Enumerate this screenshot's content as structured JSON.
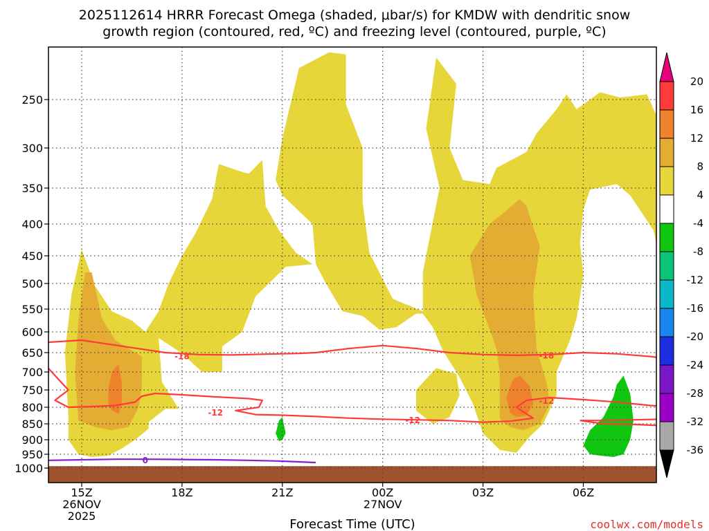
{
  "title_line1": "2025112614 HRRR Forecast Omega (shaded, μbar/s) for KMDW with dendritic snow",
  "title_line2": "growth region (contoured, red, ºC) and freezing level (contoured, purple, ºC)",
  "xlabel": "Forecast Time (UTC)",
  "credit": "coolwx.com/models",
  "chart_data": {
    "type": "area",
    "title": "2025112614 HRRR Forecast Omega (shaded, μbar/s) for KMDW with dendritic snow growth region (contoured, red, ºC) and freezing level (contoured, purple, ºC)",
    "xlabel": "Forecast Time (UTC)",
    "ylabel": "",
    "xlim_hours": [
      14,
      32.9
    ],
    "ylim_hpa": [
      200,
      1030
    ],
    "y_ticks": [
      250,
      300,
      350,
      400,
      450,
      500,
      550,
      600,
      650,
      700,
      750,
      800,
      850,
      900,
      950,
      1000
    ],
    "x_ticks": [
      {
        "hour": 15,
        "lines": [
          "15Z",
          "26NOV",
          "2025"
        ]
      },
      {
        "hour": 18,
        "lines": [
          "18Z"
        ]
      },
      {
        "hour": 21,
        "lines": [
          "21Z"
        ]
      },
      {
        "hour": 24,
        "lines": [
          "00Z",
          "27NOV"
        ]
      },
      {
        "hour": 27,
        "lines": [
          "03Z"
        ]
      },
      {
        "hour": 30,
        "lines": [
          "06Z"
        ]
      }
    ],
    "grid": true,
    "colorbar": {
      "labels": [
        "20",
        "16",
        "12",
        "8",
        "4",
        "-4",
        "-8",
        "-12",
        "-16",
        "-20",
        "-24",
        "-28",
        "-32",
        "-36"
      ],
      "colors": [
        "#e8007a",
        "#ff3a3a",
        "#f0822c",
        "#e4ac33",
        "#e6d63a",
        "#ffffff",
        "#11c611",
        "#0cc37a",
        "#0ab8c8",
        "#1a86ef",
        "#1c2ee0",
        "#7a16c8",
        "#9b00c8",
        "#a8a8a8",
        "#000000"
      ]
    },
    "omega_regions": [
      {
        "level": "4 to 8",
        "color": "#e6d63a",
        "points": [
          [
            14.6,
            825
          ],
          [
            14.5,
            650
          ],
          [
            14.7,
            520
          ],
          [
            15.0,
            440
          ],
          [
            15.4,
            505
          ],
          [
            15.9,
            555
          ],
          [
            16.5,
            575
          ],
          [
            16.9,
            600
          ],
          [
            17.3,
            555
          ],
          [
            17.6,
            500
          ],
          [
            18.0,
            450
          ],
          [
            18.4,
            415
          ],
          [
            18.9,
            365
          ],
          [
            19.1,
            320
          ],
          [
            19.8,
            330
          ],
          [
            20.0,
            332
          ],
          [
            20.4,
            315
          ],
          [
            20.5,
            375
          ],
          [
            20.9,
            410
          ],
          [
            21.4,
            445
          ],
          [
            21.9,
            465
          ],
          [
            21.1,
            470
          ],
          [
            20.2,
            525
          ],
          [
            19.8,
            600
          ],
          [
            19.2,
            635
          ],
          [
            19.2,
            700
          ],
          [
            18.6,
            700
          ],
          [
            18.0,
            652
          ],
          [
            17.3,
            615
          ],
          [
            17.4,
            728
          ],
          [
            17.9,
            805
          ],
          [
            17.5,
            805
          ],
          [
            17.0,
            845
          ],
          [
            17.0,
            865
          ],
          [
            16.6,
            900
          ],
          [
            16.2,
            930
          ],
          [
            15.8,
            955
          ],
          [
            15.3,
            960
          ],
          [
            14.9,
            950
          ],
          [
            14.6,
            900
          ]
        ]
      },
      {
        "level": "4 to 8",
        "color": "#e6d63a",
        "points": [
          [
            22.0,
            465
          ],
          [
            21.9,
            400
          ],
          [
            21.0,
            360
          ],
          [
            20.8,
            340
          ],
          [
            21.0,
            290
          ],
          [
            21.5,
            220
          ],
          [
            22.4,
            205
          ],
          [
            22.9,
            207
          ],
          [
            22.9,
            255
          ],
          [
            23.4,
            300
          ],
          [
            23.4,
            370
          ],
          [
            23.6,
            445
          ],
          [
            24.3,
            530
          ],
          [
            25.2,
            555
          ],
          [
            25.2,
            480
          ],
          [
            25.7,
            350
          ],
          [
            25.3,
            280
          ],
          [
            25.6,
            210
          ],
          [
            26.2,
            235
          ],
          [
            26.0,
            300
          ],
          [
            26.4,
            340
          ],
          [
            27.2,
            345
          ],
          [
            27.4,
            325
          ],
          [
            28.3,
            305
          ],
          [
            28.6,
            285
          ],
          [
            29.2,
            260
          ],
          [
            29.5,
            245
          ],
          [
            29.8,
            260
          ],
          [
            30.5,
            243
          ],
          [
            31.1,
            248
          ],
          [
            31.9,
            245
          ],
          [
            32.3,
            275
          ],
          [
            32.8,
            240
          ],
          [
            32.9,
            250
          ],
          [
            32.9,
            590
          ],
          [
            32.8,
            570
          ],
          [
            32.6,
            520
          ],
          [
            32.3,
            460
          ],
          [
            32.1,
            410
          ],
          [
            31.4,
            360
          ],
          [
            31.0,
            345
          ],
          [
            30.2,
            352
          ],
          [
            30.0,
            380
          ],
          [
            29.9,
            430
          ],
          [
            30.0,
            485
          ],
          [
            29.8,
            570
          ],
          [
            29.6,
            620
          ],
          [
            29.2,
            700
          ],
          [
            29.2,
            765
          ],
          [
            28.8,
            850
          ],
          [
            28.4,
            890
          ],
          [
            28.0,
            945
          ],
          [
            27.5,
            935
          ],
          [
            27.0,
            880
          ],
          [
            26.7,
            790
          ],
          [
            26.3,
            715
          ],
          [
            25.8,
            645
          ],
          [
            25.5,
            590
          ],
          [
            25.2,
            560
          ],
          [
            25.0,
            560
          ],
          [
            24.4,
            590
          ],
          [
            23.9,
            595
          ],
          [
            23.4,
            565
          ],
          [
            22.8,
            555
          ],
          [
            22.3,
            500
          ]
        ]
      },
      {
        "level": "4 to 8",
        "color": "#e6d63a",
        "points": [
          [
            25.0,
            750
          ],
          [
            25.6,
            690
          ],
          [
            26.2,
            705
          ],
          [
            26.3,
            765
          ],
          [
            26.0,
            830
          ],
          [
            25.5,
            850
          ],
          [
            25.0,
            810
          ]
        ]
      },
      {
        "level": "8 to 12",
        "color": "#e4ac33",
        "points": [
          [
            14.9,
            840
          ],
          [
            14.8,
            700
          ],
          [
            14.9,
            575
          ],
          [
            15.1,
            480
          ],
          [
            15.3,
            480
          ],
          [
            15.6,
            570
          ],
          [
            16.0,
            620
          ],
          [
            16.4,
            640
          ],
          [
            16.8,
            660
          ],
          [
            16.8,
            740
          ],
          [
            16.7,
            800
          ],
          [
            16.4,
            860
          ],
          [
            15.9,
            870
          ],
          [
            15.4,
            860
          ]
        ]
      },
      {
        "level": "8 to 12",
        "color": "#e4ac33",
        "points": [
          [
            26.6,
            450
          ],
          [
            27.2,
            400
          ],
          [
            27.6,
            385
          ],
          [
            28.1,
            365
          ],
          [
            28.3,
            375
          ],
          [
            28.5,
            405
          ],
          [
            28.7,
            435
          ],
          [
            28.5,
            520
          ],
          [
            28.6,
            640
          ],
          [
            28.9,
            730
          ],
          [
            29.0,
            790
          ],
          [
            28.7,
            850
          ],
          [
            28.2,
            870
          ],
          [
            27.8,
            860
          ],
          [
            27.5,
            835
          ],
          [
            27.5,
            760
          ],
          [
            27.5,
            700
          ],
          [
            27.4,
            640
          ],
          [
            27.1,
            575
          ],
          [
            26.8,
            520
          ],
          [
            26.7,
            480
          ]
        ]
      },
      {
        "level": "12 to 16",
        "color": "#f0822c",
        "points": [
          [
            15.8,
            790
          ],
          [
            15.8,
            745
          ],
          [
            15.9,
            700
          ],
          [
            16.1,
            680
          ],
          [
            16.2,
            730
          ],
          [
            16.2,
            790
          ],
          [
            16.1,
            820
          ],
          [
            15.9,
            810
          ]
        ]
      },
      {
        "level": "12 to 16",
        "color": "#f0822c",
        "points": [
          [
            27.7,
            770
          ],
          [
            27.9,
            720
          ],
          [
            28.1,
            710
          ],
          [
            28.4,
            740
          ],
          [
            28.5,
            790
          ],
          [
            28.3,
            825
          ],
          [
            28.0,
            830
          ],
          [
            27.8,
            815
          ]
        ]
      },
      {
        "level": "-4 to -8",
        "color": "#11c611",
        "points": [
          [
            30.0,
            920
          ],
          [
            30.2,
            870
          ],
          [
            30.6,
            830
          ],
          [
            30.9,
            770
          ],
          [
            31.0,
            735
          ],
          [
            31.2,
            710
          ],
          [
            31.4,
            760
          ],
          [
            31.5,
            840
          ],
          [
            31.4,
            900
          ],
          [
            31.2,
            950
          ],
          [
            30.9,
            960
          ],
          [
            30.5,
            955
          ],
          [
            30.2,
            950
          ]
        ]
      },
      {
        "level": "-4 to -8",
        "color": "#11c611",
        "points": [
          [
            20.8,
            880
          ],
          [
            20.9,
            840
          ],
          [
            21.0,
            830
          ],
          [
            21.1,
            880
          ],
          [
            21.0,
            900
          ],
          [
            20.9,
            905
          ]
        ]
      }
    ],
    "temperature_contours": [
      {
        "label": "-18",
        "color": "#ff3a3a",
        "points": [
          [
            14.0,
            625
          ],
          [
            15.0,
            620
          ],
          [
            16.5,
            638
          ],
          [
            17.5,
            650
          ],
          [
            18.5,
            655
          ],
          [
            19.5,
            656
          ],
          [
            20.5,
            654
          ],
          [
            21.5,
            652
          ],
          [
            22.0,
            650
          ],
          [
            23.0,
            640
          ],
          [
            24.0,
            633
          ],
          [
            25.0,
            640
          ],
          [
            26.0,
            650
          ],
          [
            27.0,
            655
          ],
          [
            28.0,
            657
          ],
          [
            29.0,
            655
          ],
          [
            30.0,
            650
          ],
          [
            31.0,
            653
          ],
          [
            32.0,
            660
          ],
          [
            32.9,
            670
          ]
        ]
      },
      {
        "label": "-12",
        "color": "#ff3a3a",
        "points": [
          [
            14.0,
            690
          ],
          [
            14.4,
            730
          ],
          [
            14.6,
            750
          ],
          [
            14.2,
            780
          ],
          [
            14.6,
            800
          ],
          [
            15.3,
            798
          ],
          [
            16.0,
            795
          ],
          [
            16.6,
            785
          ],
          [
            16.8,
            768
          ],
          [
            17.2,
            760
          ],
          [
            18.0,
            764
          ],
          [
            19.0,
            770
          ],
          [
            20.0,
            775
          ],
          [
            20.4,
            780
          ],
          [
            20.3,
            800
          ],
          [
            19.6,
            810
          ],
          [
            20.2,
            822
          ],
          [
            21.0,
            824
          ],
          [
            22.0,
            828
          ],
          [
            23.0,
            833
          ],
          [
            24.0,
            836
          ],
          [
            25.0,
            838
          ],
          [
            26.0,
            840
          ],
          [
            27.0,
            845
          ],
          [
            27.8,
            842
          ],
          [
            28.5,
            833
          ],
          [
            28.3,
            820
          ],
          [
            28.0,
            800
          ],
          [
            28.3,
            780
          ],
          [
            29.0,
            772
          ],
          [
            30.0,
            778
          ],
          [
            31.0,
            785
          ],
          [
            32.0,
            795
          ],
          [
            32.9,
            800
          ]
        ]
      },
      {
        "label": "-12",
        "color": "#ff3a3a",
        "points": [
          [
            29.9,
            840
          ],
          [
            30.5,
            840
          ],
          [
            31.5,
            838
          ],
          [
            32.4,
            836
          ],
          [
            32.9,
            836
          ]
        ]
      },
      {
        "label": "-12",
        "color": "#ff3a3a",
        "points": [
          [
            29.9,
            840
          ],
          [
            30.6,
            850
          ],
          [
            31.5,
            852
          ],
          [
            32.9,
            858
          ]
        ]
      }
    ],
    "contour_labels": [
      {
        "text": "-18",
        "color": "#ff3a3a",
        "hour": 18.0,
        "hpa": 658
      },
      {
        "text": "-18",
        "color": "#ff3a3a",
        "hour": 28.9,
        "hpa": 656
      },
      {
        "text": "-12",
        "color": "#ff3a3a",
        "hour": 19.0,
        "hpa": 815
      },
      {
        "text": "-12",
        "color": "#ff3a3a",
        "hour": 24.9,
        "hpa": 838
      },
      {
        "text": "-12",
        "color": "#ff3a3a",
        "hour": 28.9,
        "hpa": 780
      },
      {
        "text": "0",
        "color": "#8a1ec8",
        "hour": 16.9,
        "hpa": 970
      }
    ],
    "freezing_level": {
      "label": "0",
      "color": "#8a1ec8",
      "points": [
        [
          14.0,
          972
        ],
        [
          15.0,
          970
        ],
        [
          16.0,
          968
        ],
        [
          17.0,
          968
        ],
        [
          18.0,
          969
        ],
        [
          19.0,
          970
        ],
        [
          20.0,
          972
        ],
        [
          21.0,
          975
        ],
        [
          22.0,
          980
        ]
      ]
    },
    "ground_hpa": 993,
    "ground_color": "#a0522d"
  }
}
